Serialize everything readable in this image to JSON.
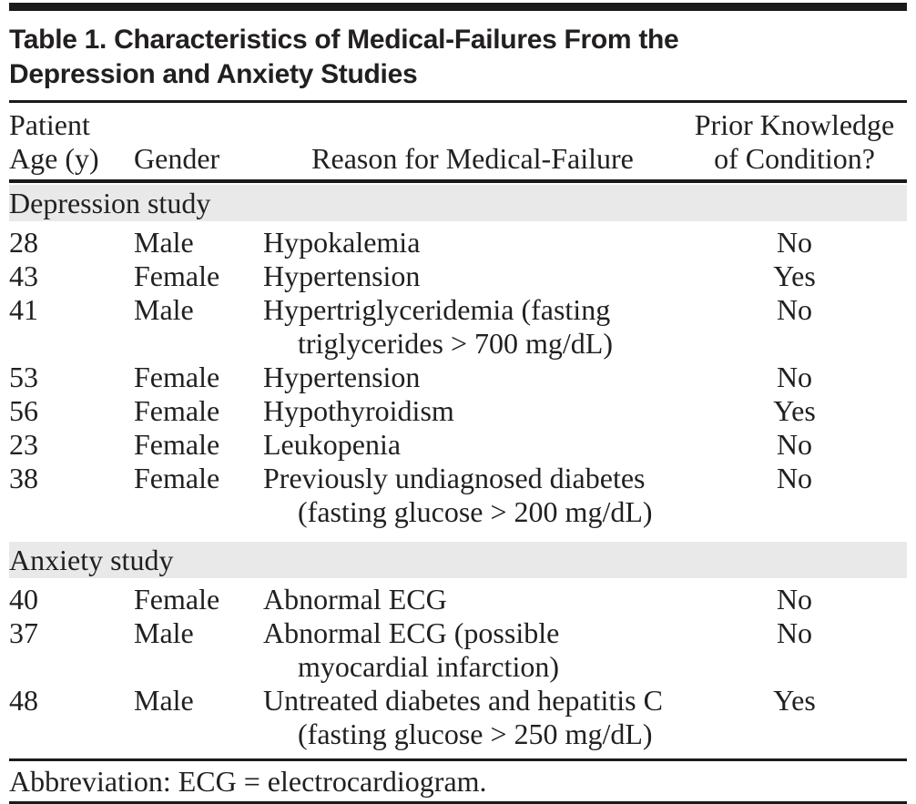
{
  "title_lines": [
    "Table 1. Characteristics of Medical-Failures From the",
    "Depression and Anxiety Studies"
  ],
  "columns": {
    "patient_age": [
      "Patient",
      "Age (y)"
    ],
    "gender": "Gender",
    "reason": "Reason for Medical-Failure",
    "prior_knowledge": [
      "Prior Knowledge",
      "of Condition?"
    ]
  },
  "sections": [
    {
      "label": "Depression study",
      "rows": [
        {
          "age": "28",
          "gender": "Male",
          "reason_lines": [
            "Hypokalemia"
          ],
          "prior": "No"
        },
        {
          "age": "43",
          "gender": "Female",
          "reason_lines": [
            "Hypertension"
          ],
          "prior": "Yes"
        },
        {
          "age": "41",
          "gender": "Male",
          "reason_lines": [
            "Hypertriglyceridemia (fasting",
            "triglycerides > 700 mg/dL)"
          ],
          "prior": "No"
        },
        {
          "age": "53",
          "gender": "Female",
          "reason_lines": [
            "Hypertension"
          ],
          "prior": "No"
        },
        {
          "age": "56",
          "gender": "Female",
          "reason_lines": [
            "Hypothyroidism"
          ],
          "prior": "Yes"
        },
        {
          "age": "23",
          "gender": "Female",
          "reason_lines": [
            "Leukopenia"
          ],
          "prior": "No"
        },
        {
          "age": "38",
          "gender": "Female",
          "reason_lines": [
            "Previously undiagnosed diabetes",
            "(fasting glucose > 200 mg/dL)"
          ],
          "prior": "No"
        }
      ]
    },
    {
      "label": "Anxiety study",
      "rows": [
        {
          "age": "40",
          "gender": "Female",
          "reason_lines": [
            "Abnormal ECG"
          ],
          "prior": "No"
        },
        {
          "age": "37",
          "gender": "Male",
          "reason_lines": [
            "Abnormal ECG (possible",
            "myocardial infarction)"
          ],
          "prior": "No"
        },
        {
          "age": "48",
          "gender": "Male",
          "reason_lines": [
            "Untreated diabetes and hepatitis C",
            "(fasting glucose > 250 mg/dL)"
          ],
          "prior": "Yes"
        }
      ]
    }
  ],
  "footnote": "Abbreviation: ECG = electrocardiogram.",
  "colors": {
    "band": "#e9e9e9",
    "text": "#221f20",
    "rule": "#1a1a1a"
  }
}
